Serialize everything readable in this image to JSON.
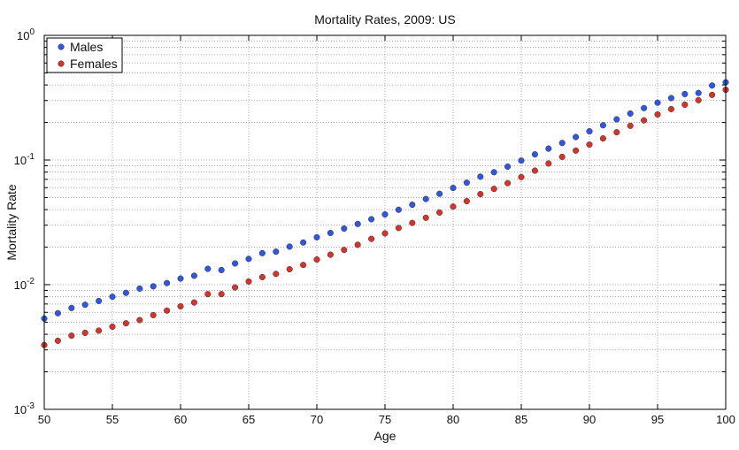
{
  "chart_data": {
    "type": "scatter",
    "title": "Mortality Rates, 2009: US",
    "xlabel": "Age",
    "ylabel": "Mortality Rate",
    "xlim": [
      50,
      100
    ],
    "ylim": [
      0.001,
      1
    ],
    "yscale": "log",
    "grid": true,
    "legend_position": "top-left",
    "x_ticks": [
      "50",
      "55",
      "60",
      "65",
      "70",
      "75",
      "80",
      "85",
      "90",
      "95",
      "100"
    ],
    "y_ticks": [
      {
        "base": "10",
        "exp": "-3"
      },
      {
        "base": "10",
        "exp": "-2"
      },
      {
        "base": "10",
        "exp": "-1"
      },
      {
        "base": "10",
        "exp": "0"
      }
    ],
    "x": [
      50,
      51,
      52,
      53,
      54,
      55,
      56,
      57,
      58,
      59,
      60,
      61,
      62,
      63,
      64,
      65,
      66,
      67,
      68,
      69,
      70,
      71,
      72,
      73,
      74,
      75,
      76,
      77,
      78,
      79,
      80,
      81,
      82,
      83,
      84,
      85,
      86,
      87,
      88,
      89,
      90,
      91,
      92,
      93,
      94,
      95,
      96,
      97,
      98,
      99,
      100
    ],
    "series": [
      {
        "name": "Males",
        "color": "#2f56e6",
        "values": [
          0.00535,
          0.0059,
          0.0065,
          0.0069,
          0.0074,
          0.008,
          0.0086,
          0.0093,
          0.0097,
          0.0103,
          0.0112,
          0.0118,
          0.0134,
          0.0131,
          0.0148,
          0.0161,
          0.0179,
          0.0184,
          0.0202,
          0.0218,
          0.024,
          0.026,
          0.0282,
          0.0307,
          0.0335,
          0.0366,
          0.0399,
          0.0438,
          0.0487,
          0.0536,
          0.0597,
          0.0658,
          0.0735,
          0.0798,
          0.0885,
          0.099,
          0.111,
          0.1235,
          0.137,
          0.153,
          0.17,
          0.19,
          0.212,
          0.236,
          0.261,
          0.288,
          0.314,
          0.338,
          0.345,
          0.396,
          0.42
        ]
      },
      {
        "name": "Females",
        "color": "#d8322a",
        "values": [
          0.00328,
          0.00355,
          0.0039,
          0.00411,
          0.00428,
          0.0046,
          0.0049,
          0.0052,
          0.0057,
          0.0062,
          0.0067,
          0.0072,
          0.0084,
          0.0084,
          0.0095,
          0.0106,
          0.0115,
          0.0122,
          0.0133,
          0.0144,
          0.0159,
          0.0174,
          0.019,
          0.0209,
          0.0233,
          0.0258,
          0.0285,
          0.0313,
          0.0344,
          0.0379,
          0.0423,
          0.0468,
          0.0533,
          0.0587,
          0.0652,
          0.073,
          0.0822,
          0.0938,
          0.106,
          0.119,
          0.133,
          0.149,
          0.167,
          0.188,
          0.208,
          0.232,
          0.256,
          0.278,
          0.302,
          0.333,
          0.366
        ]
      }
    ]
  }
}
